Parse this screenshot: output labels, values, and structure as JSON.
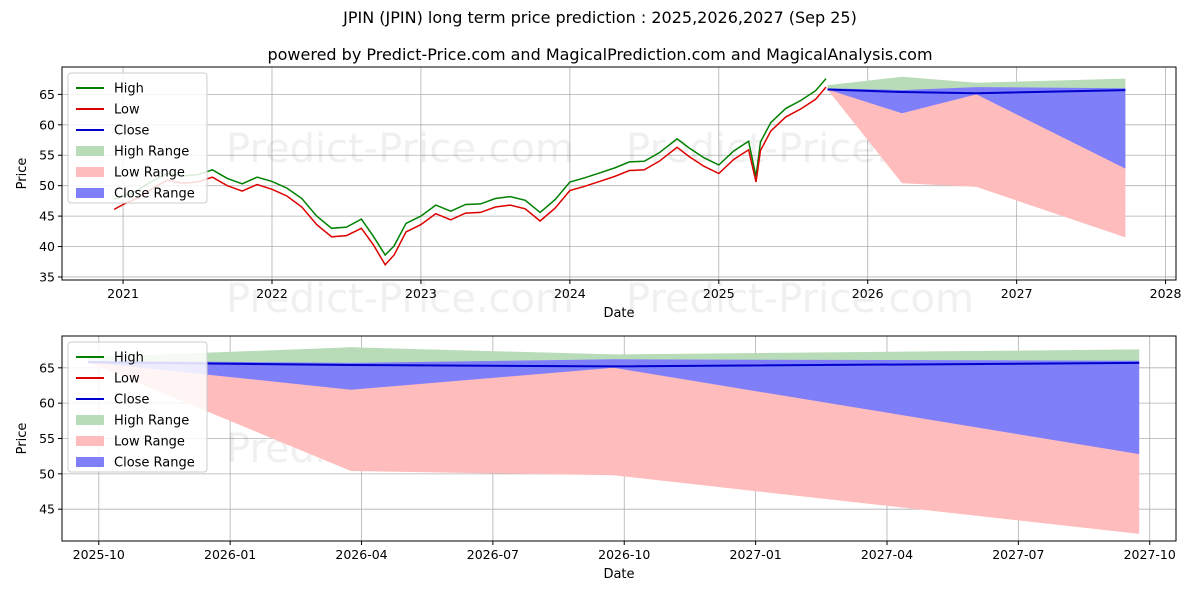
{
  "title": "JPIN (JPIN) long term price prediction : 2025,2026,2027 (Sep 25)",
  "subtitle": "powered by Predict-Price.com and MagicalPrediction.com and MagicalAnalysis.com",
  "watermark": "Predict-Price.com",
  "colors": {
    "high": "#008000",
    "low": "#dd0000",
    "close": "#0000cc",
    "high_range": "#b8dcb8",
    "low_range": "#ffbcbc",
    "close_range": "#7f7ff9",
    "grid": "#b0b0b0"
  },
  "legend": [
    "High",
    "Low",
    "Close",
    "High Range",
    "Low Range",
    "Close Range"
  ],
  "chart_data": [
    {
      "type": "line",
      "name": "history-and-forecast",
      "xlabel": "Date",
      "ylabel": "Price",
      "xlim": [
        2020.59,
        2028.07
      ],
      "ylim": [
        34.5,
        69.5
      ],
      "xticks": [
        2021,
        2022,
        2023,
        2024,
        2025,
        2026,
        2027,
        2028
      ],
      "xtick_labels": [
        "2021",
        "2022",
        "2023",
        "2024",
        "2025",
        "2026",
        "2027",
        "2028"
      ],
      "yticks": [
        35,
        40,
        45,
        50,
        55,
        60,
        65
      ],
      "grid": true,
      "legend_position": "top-left",
      "history": {
        "x": [
          2020.94,
          2021.0,
          2021.1,
          2021.2,
          2021.3,
          2021.4,
          2021.5,
          2021.6,
          2021.7,
          2021.8,
          2021.9,
          2022.0,
          2022.1,
          2022.2,
          2022.3,
          2022.4,
          2022.5,
          2022.6,
          2022.68,
          2022.76,
          2022.82,
          2022.9,
          2023.0,
          2023.1,
          2023.2,
          2023.3,
          2023.4,
          2023.5,
          2023.6,
          2023.7,
          2023.8,
          2023.9,
          2024.0,
          2024.1,
          2024.2,
          2024.3,
          2024.4,
          2024.5,
          2024.6,
          2024.72,
          2024.8,
          2024.9,
          2025.0,
          2025.1,
          2025.2,
          2025.25,
          2025.28,
          2025.35,
          2025.45,
          2025.55,
          2025.65,
          2025.72
        ],
        "high": [
          47.8,
          48.2,
          49.3,
          50.8,
          52.0,
          51.6,
          51.8,
          52.6,
          51.2,
          50.3,
          51.4,
          50.7,
          49.6,
          47.9,
          45.0,
          43.0,
          43.2,
          44.5,
          41.7,
          38.6,
          40.1,
          43.8,
          45.0,
          46.8,
          45.8,
          46.9,
          47.0,
          47.9,
          48.2,
          47.6,
          45.6,
          47.7,
          50.6,
          51.3,
          52.1,
          52.9,
          53.9,
          54.0,
          55.4,
          57.7,
          56.2,
          54.6,
          53.4,
          55.7,
          57.3,
          51.5,
          57.2,
          60.4,
          62.7,
          64.0,
          65.6,
          67.6
        ],
        "low": [
          46.1,
          46.9,
          48.0,
          49.6,
          50.9,
          50.4,
          50.6,
          51.4,
          50.0,
          49.1,
          50.2,
          49.4,
          48.3,
          46.5,
          43.6,
          41.6,
          41.8,
          43.0,
          40.3,
          37.0,
          38.6,
          42.4,
          43.6,
          45.4,
          44.4,
          45.5,
          45.6,
          46.5,
          46.8,
          46.2,
          44.2,
          46.3,
          49.2,
          49.9,
          50.7,
          51.5,
          52.5,
          52.6,
          54.0,
          56.3,
          54.8,
          53.2,
          52.0,
          54.3,
          55.9,
          50.6,
          55.8,
          59.0,
          61.3,
          62.6,
          64.2,
          66.2
        ]
      },
      "forecast": {
        "x": [
          2025.73,
          2026.23,
          2026.73,
          2027.73
        ],
        "close": [
          65.8,
          65.4,
          65.2,
          65.7
        ],
        "high_range_upper": [
          66.5,
          67.9,
          66.9,
          67.6
        ],
        "low_range_lower": [
          65.8,
          50.4,
          49.8,
          41.5
        ],
        "close_range_upper": [
          66.0,
          65.7,
          66.2,
          66.0
        ],
        "close_range_lower": [
          65.8,
          61.9,
          65.0,
          52.8
        ]
      }
    },
    {
      "type": "line",
      "name": "forecast-zoom",
      "xlabel": "Date",
      "ylabel": "Price",
      "xlim": [
        2025.68,
        2027.8
      ],
      "ylim": [
        40.5,
        69.5
      ],
      "xticks": [
        2025.75,
        2026.0,
        2026.25,
        2026.5,
        2026.75,
        2027.0,
        2027.25,
        2027.5,
        2027.75
      ],
      "xtick_labels": [
        "2025-10",
        "2026-01",
        "2026-04",
        "2026-07",
        "2026-10",
        "2027-01",
        "2027-04",
        "2027-07",
        "2027-10"
      ],
      "yticks": [
        45,
        50,
        55,
        60,
        65
      ],
      "grid": true,
      "legend_position": "top-left",
      "forecast": {
        "x": [
          2025.73,
          2026.23,
          2026.73,
          2027.73
        ],
        "close": [
          65.8,
          65.4,
          65.2,
          65.7
        ],
        "high_range_upper": [
          66.5,
          67.9,
          66.9,
          67.6
        ],
        "low_range_lower": [
          65.8,
          50.4,
          49.8,
          41.5
        ],
        "close_range_upper": [
          66.0,
          65.7,
          66.2,
          66.0
        ],
        "close_range_lower": [
          65.8,
          61.9,
          65.0,
          52.8
        ]
      }
    }
  ]
}
